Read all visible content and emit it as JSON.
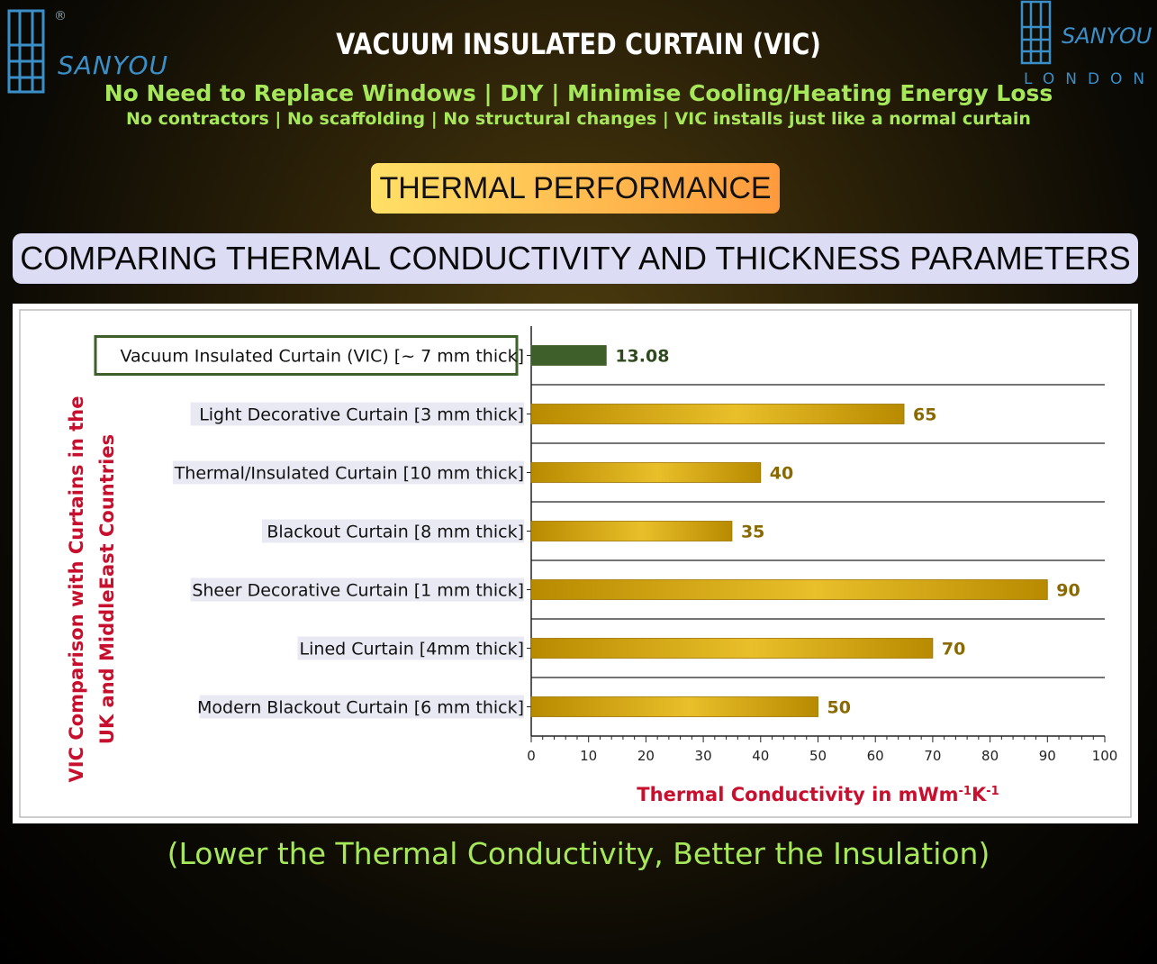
{
  "header": {
    "brand_left": "SANYOU",
    "registered_mark": "®",
    "brand_right": "SANYOU",
    "brand_right_city": "LONDON",
    "title": "VACUUM INSULATED CURTAIN (VIC)",
    "subtitle_main": "No Need to Replace Windows | DIY | Minimise Cooling/Heating Energy Loss",
    "subtitle_detail": "No contractors | No scaffolding | No structural changes | VIC installs just like a normal curtain",
    "section_pill": "THERMAL PERFORMANCE",
    "banner": "COMPARING THERMAL CONDUCTIVITY AND THICKNESS PARAMETERS"
  },
  "colors": {
    "accent_green": "#a6e85a",
    "brand_blue": "#3b8fc9",
    "vic_bar": "#3f5f2a",
    "gold_bar_dark": "#b88a00",
    "gold_bar_light": "#e9bf2a",
    "value_gold": "#8a6a00",
    "axis_title_red": "#c8102e"
  },
  "chart_data": {
    "type": "bar",
    "orientation": "horizontal",
    "categories": [
      "Vacuum Insulated Curtain (VIC) [~ 7 mm thick]",
      "Light Decorative Curtain [3 mm thick]",
      "Thermal/Insulated Curtain [10 mm thick]",
      "Blackout Curtain [8 mm thick]",
      "Sheer Decorative Curtain [1 mm thick]",
      "Lined Curtain [4mm thick]",
      "Modern Blackout Curtain [6 mm thick]"
    ],
    "values": [
      13.08,
      65,
      40,
      35,
      90,
      70,
      50
    ],
    "value_labels": [
      "13.08",
      "65",
      "40",
      "35",
      "90",
      "70",
      "50"
    ],
    "highlight_index": 0,
    "xlim": [
      0,
      100
    ],
    "xticks": [
      0,
      10,
      20,
      30,
      40,
      50,
      60,
      70,
      80,
      90,
      100
    ],
    "xlabel_main": "Thermal Conductivity in mWm",
    "xlabel_sup1": "-1",
    "xlabel_mid": "K",
    "xlabel_sup2": "-1",
    "ylabel_line1": "VIC Comparison with  Curtains in the",
    "ylabel_line2": "UK and MiddleEast Countries",
    "grid": "horizontal separators"
  },
  "footer": {
    "note": "(Lower the Thermal Conductivity, Better the Insulation)"
  }
}
